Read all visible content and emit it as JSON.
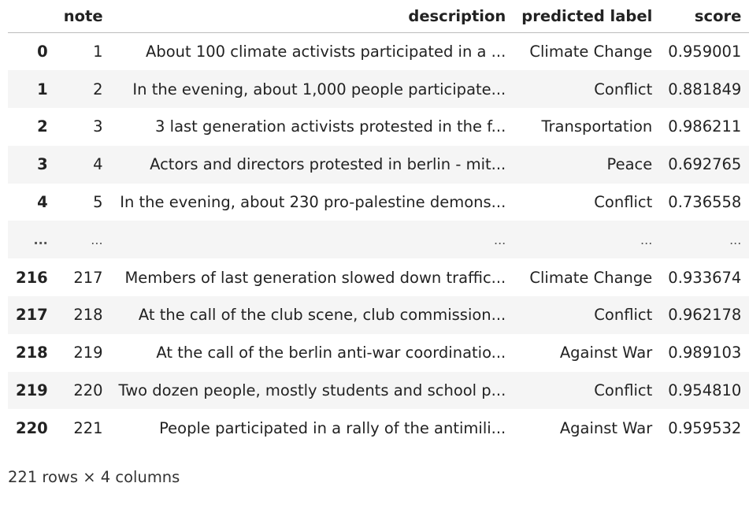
{
  "table": {
    "columns": {
      "index": "",
      "note": "note",
      "description": "description",
      "predicted_label": "predicted label",
      "score": "score"
    },
    "rows": [
      {
        "index": "0",
        "note": "1",
        "description": "About 100 climate activists participated in a ...",
        "predicted_label": "Climate Change",
        "score": "0.959001"
      },
      {
        "index": "1",
        "note": "2",
        "description": "In the evening, about 1,000 people participate...",
        "predicted_label": "Conflict",
        "score": "0.881849"
      },
      {
        "index": "2",
        "note": "3",
        "description": "3 last generation activists protested in the f...",
        "predicted_label": "Transportation",
        "score": "0.986211"
      },
      {
        "index": "3",
        "note": "4",
        "description": "Actors and directors protested in berlin - mit...",
        "predicted_label": "Peace",
        "score": "0.692765"
      },
      {
        "index": "4",
        "note": "5",
        "description": "In the evening, about 230 pro-palestine demons...",
        "predicted_label": "Conflict",
        "score": "0.736558"
      },
      {
        "index": "...",
        "note": "...",
        "description": "...",
        "predicted_label": "...",
        "score": "..."
      },
      {
        "index": "216",
        "note": "217",
        "description": "Members of last generation slowed down traffic...",
        "predicted_label": "Climate Change",
        "score": "0.933674"
      },
      {
        "index": "217",
        "note": "218",
        "description": "At the call of the club scene, club commission...",
        "predicted_label": "Conflict",
        "score": "0.962178"
      },
      {
        "index": "218",
        "note": "219",
        "description": "At the call of the berlin anti-war coordinatio...",
        "predicted_label": "Against War",
        "score": "0.989103"
      },
      {
        "index": "219",
        "note": "220",
        "description": "Two dozen people, mostly students and school p...",
        "predicted_label": "Conflict",
        "score": "0.954810"
      },
      {
        "index": "220",
        "note": "221",
        "description": "People participated in a rally of the antimili...",
        "predicted_label": "Against War",
        "score": "0.959532"
      }
    ]
  },
  "summary": "221 rows × 4 columns"
}
